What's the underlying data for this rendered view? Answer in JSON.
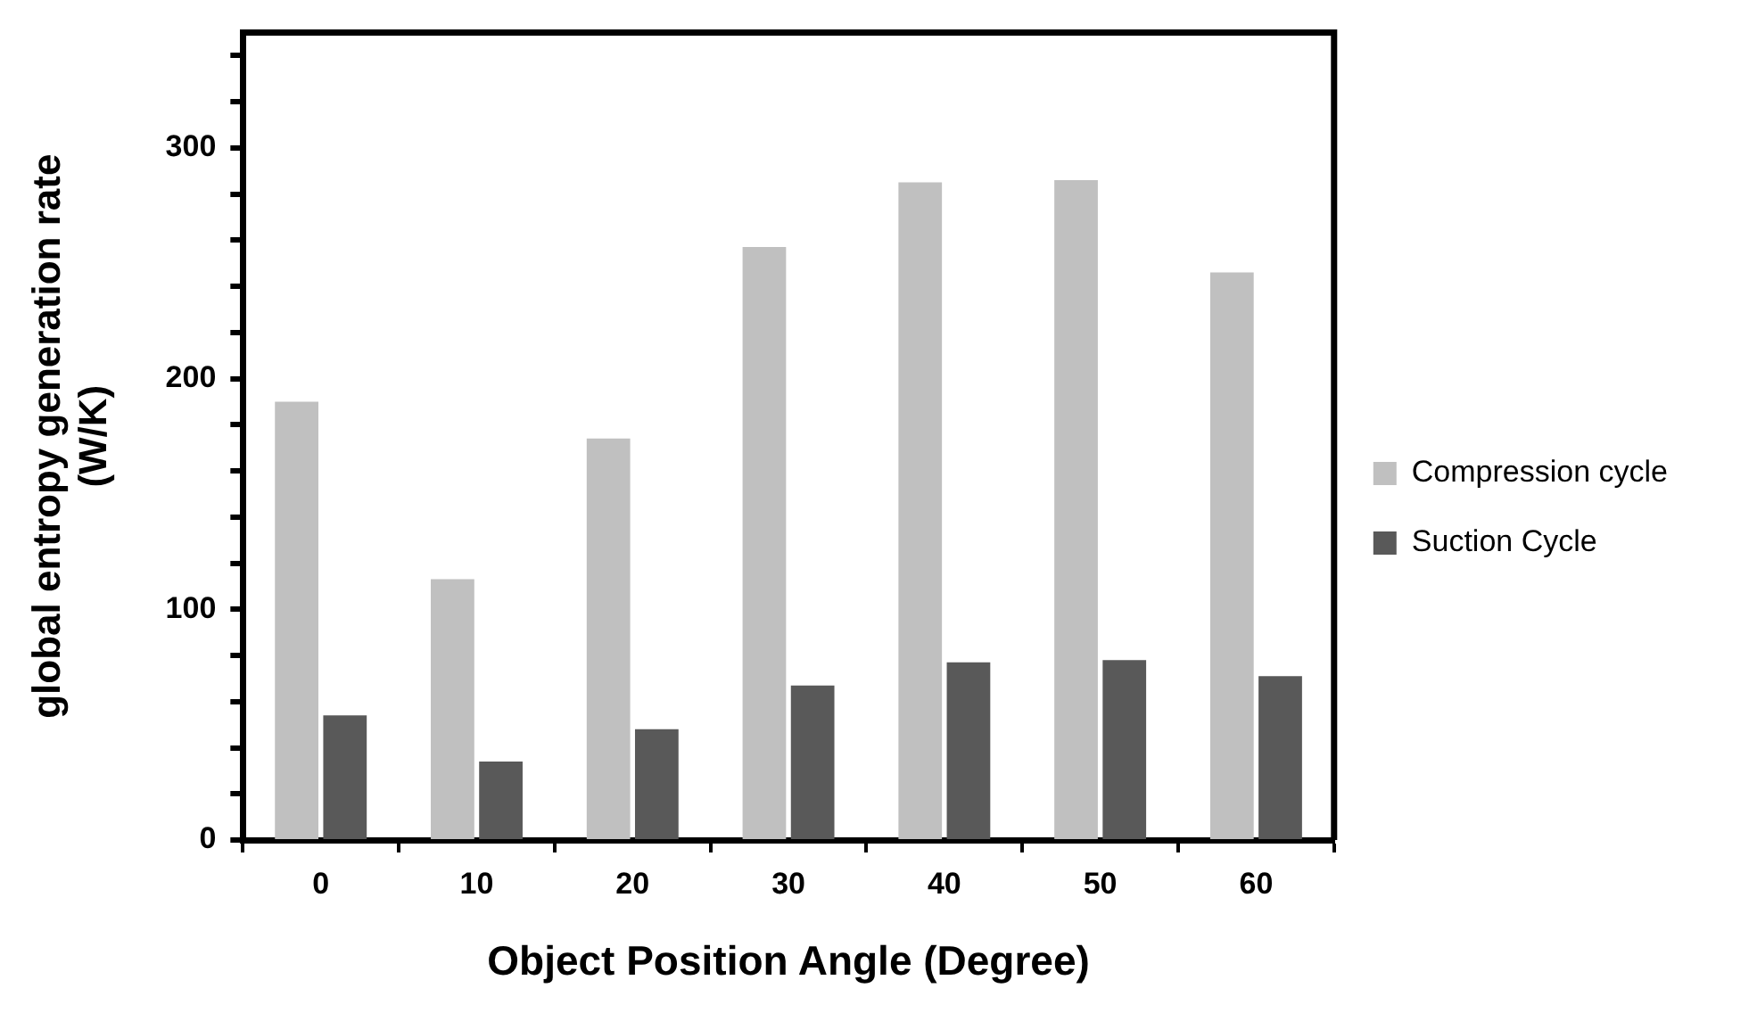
{
  "chart_data": {
    "type": "bar",
    "xlabel": "Object Position Angle (Degree)",
    "ylabel": "global entropy generation rate\n(W/K)",
    "categories": [
      "0",
      "10",
      "20",
      "30",
      "40",
      "50",
      "60"
    ],
    "series": [
      {
        "name": "Compression cycle",
        "color": "#c0c0c0",
        "values": [
          190,
          113,
          174,
          257,
          285,
          286,
          246
        ]
      },
      {
        "name": "Suction Cycle",
        "color": "#595959",
        "values": [
          54,
          34,
          48,
          67,
          77,
          78,
          71
        ]
      }
    ],
    "ylim": [
      0,
      350
    ],
    "yticks": [
      0,
      {
        "value": 20,
        "label": null
      },
      {
        "value": 40,
        "label": null
      },
      {
        "value": 60,
        "label": null
      },
      {
        "value": 80,
        "label": null
      },
      100,
      {
        "value": 120,
        "label": null
      },
      {
        "value": 140,
        "label": null
      },
      {
        "value": 160,
        "label": null
      },
      {
        "value": 180,
        "label": null
      },
      200,
      {
        "value": 220,
        "label": null
      },
      {
        "value": 240,
        "label": null
      },
      {
        "value": 260,
        "label": null
      },
      {
        "value": 280,
        "label": null
      },
      300,
      {
        "value": 320,
        "label": null
      },
      {
        "value": 340,
        "label": null
      }
    ],
    "grid": false,
    "legend": "right"
  }
}
